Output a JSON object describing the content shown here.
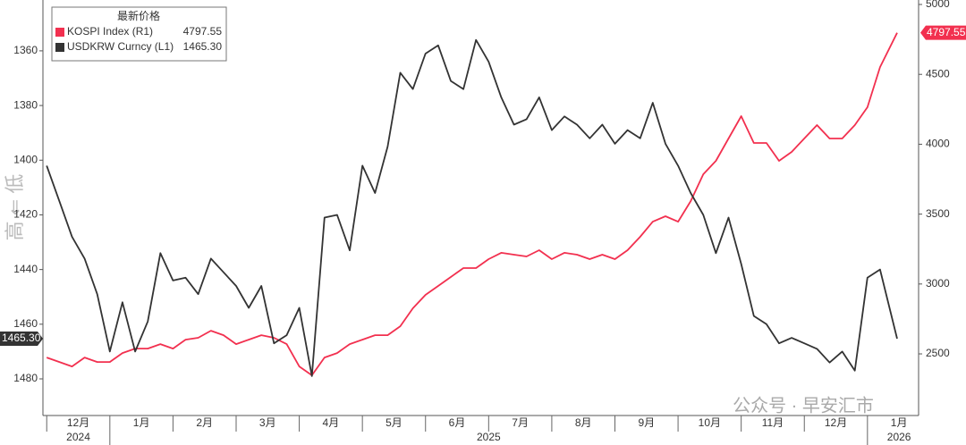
{
  "chart_data": {
    "type": "line",
    "annotations": {
      "axis_note": "高 ⇐ 低",
      "watermark": "公众号 · 早安汇市"
    },
    "legend": {
      "title": "最新价格",
      "position": "upper left"
    },
    "x": [
      0,
      0.2,
      0.4,
      0.6,
      0.8,
      1,
      1.2,
      1.4,
      1.6,
      1.8,
      2,
      2.2,
      2.4,
      2.6,
      2.8,
      3,
      3.2,
      3.4,
      3.6,
      3.8,
      4,
      4.2,
      4.4,
      4.6,
      4.8,
      5,
      5.2,
      5.4,
      5.6,
      5.8,
      6,
      6.2,
      6.4,
      6.6,
      6.8,
      7,
      7.2,
      7.4,
      7.6,
      7.8,
      8,
      8.2,
      8.4,
      8.6,
      8.8,
      9,
      9.2,
      9.4,
      9.6,
      9.8,
      10,
      10.2,
      10.4,
      10.6,
      10.8,
      11,
      11.2,
      11.4,
      11.6,
      11.8,
      12,
      12.2,
      12.4,
      12.6,
      12.8,
      13,
      13.2,
      13.47
    ],
    "xlim": [
      -0.06,
      13.81
    ],
    "xticks": [
      {
        "value": 0.5,
        "label": "12月"
      },
      {
        "value": 1.5,
        "label": "1月"
      },
      {
        "value": 2.5,
        "label": "2月"
      },
      {
        "value": 3.5,
        "label": "3月"
      },
      {
        "value": 4.5,
        "label": "4月"
      },
      {
        "value": 5.5,
        "label": "5月"
      },
      {
        "value": 6.5,
        "label": "6月"
      },
      {
        "value": 7.5,
        "label": "7月"
      },
      {
        "value": 8.5,
        "label": "8月"
      },
      {
        "value": 9.5,
        "label": "9月"
      },
      {
        "value": 10.5,
        "label": "10月"
      },
      {
        "value": 11.5,
        "label": "11月"
      },
      {
        "value": 12.5,
        "label": "12月"
      },
      {
        "value": 13.5,
        "label": "1月"
      }
    ],
    "x_year_labels": [
      {
        "value": 0.5,
        "label": "2024"
      },
      {
        "value": 7,
        "label": "2025"
      },
      {
        "value": 13.5,
        "label": "2026"
      }
    ],
    "ylim": [
      1341.4,
      1493.4
    ],
    "y_inverted": true,
    "yticks": [
      1360,
      1380,
      1400,
      1420,
      1440,
      1460,
      1480
    ],
    "y2lim": [
      2059,
      5032
    ],
    "y2ticks": [
      2500,
      3000,
      3500,
      4000,
      4500,
      5000
    ],
    "grid": false,
    "series": [
      {
        "name": "KOSPI Index (R1)",
        "color": "#f2304f",
        "axis": "y2",
        "last_value_label": "4797.55",
        "values": [
          2474,
          2442,
          2410,
          2474,
          2442,
          2442,
          2506,
          2538,
          2538,
          2570,
          2538,
          2602,
          2615,
          2666,
          2634,
          2570,
          2602,
          2634,
          2615,
          2570,
          2410,
          2347,
          2474,
          2506,
          2570,
          2602,
          2634,
          2634,
          2698,
          2826,
          2922,
          2986,
          3050,
          3114,
          3114,
          3178,
          3223,
          3210,
          3197,
          3242,
          3178,
          3223,
          3210,
          3178,
          3210,
          3178,
          3242,
          3338,
          3446,
          3485,
          3446,
          3593,
          3785,
          3881,
          4041,
          4201,
          4009,
          4009,
          3881,
          3945,
          4041,
          4137,
          4041,
          4041,
          4137,
          4265,
          4552,
          4797.55
        ]
      },
      {
        "name": "USDKRW Curncy (L1)",
        "color": "#333333",
        "axis": "y",
        "last_value_label": "1465.30",
        "values": [
          1402,
          1415,
          1428,
          1436,
          1449,
          1470,
          1452,
          1470,
          1459,
          1434,
          1444,
          1443,
          1449,
          1436,
          1441,
          1446,
          1454,
          1446,
          1467,
          1464,
          1454,
          1479,
          1421,
          1420,
          1433,
          1402,
          1412,
          1395,
          1368,
          1374,
          1361,
          1358,
          1371,
          1374,
          1356,
          1364,
          1377,
          1387,
          1385,
          1377,
          1389,
          1384,
          1387,
          1392,
          1387,
          1394,
          1389,
          1392,
          1379,
          1394,
          1402,
          1412,
          1420,
          1434,
          1421,
          1438,
          1457,
          1460,
          1467,
          1465,
          1467,
          1469,
          1474,
          1470,
          1477,
          1443,
          1440,
          1465.3
        ]
      }
    ]
  }
}
